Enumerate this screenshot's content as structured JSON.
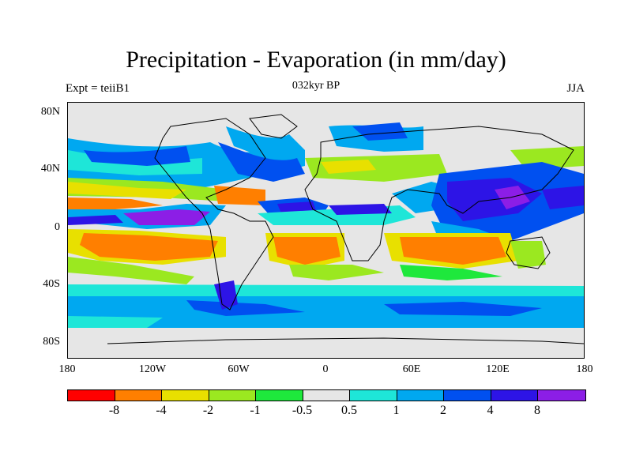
{
  "header": {
    "title": "Precipitation - Evaporation (in mm/day)",
    "subtitle": "032kyr BP",
    "left": "Expt = teiiB1",
    "right": "JJA"
  },
  "map": {
    "lat_labels": [
      "80N",
      "40N",
      "0",
      "40S",
      "80S"
    ],
    "lon_labels": [
      "180",
      "120W",
      "60W",
      "0",
      "60E",
      "120E",
      "180"
    ]
  },
  "colorbar": {
    "colors": [
      "#ff0000",
      "#ff7f00",
      "#e8e000",
      "#9be820",
      "#1ee83c",
      "#e6e6e6",
      "#1ee6d8",
      "#00a8f0",
      "#0050f0",
      "#2d14e6",
      "#8c1ee6"
    ],
    "labels": [
      "-8",
      "-4",
      "-2",
      "-1",
      "-0.5",
      "0.5",
      "1",
      "2",
      "4",
      "8"
    ]
  }
}
